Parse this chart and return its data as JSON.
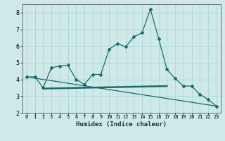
{
  "xlabel": "Humidex (Indice chaleur)",
  "ylabel": "",
  "xlim": [
    -0.5,
    23.5
  ],
  "ylim": [
    2,
    8.5
  ],
  "yticks": [
    2,
    3,
    4,
    5,
    6,
    7,
    8
  ],
  "xticks": [
    0,
    1,
    2,
    3,
    4,
    5,
    6,
    7,
    8,
    9,
    10,
    11,
    12,
    13,
    14,
    15,
    16,
    17,
    18,
    19,
    20,
    21,
    22,
    23
  ],
  "bg_color": "#cfe9e9",
  "grid_color": "#b0d8d8",
  "line_color": "#1a6b6b",
  "line1_x": [
    0,
    1,
    2,
    3,
    4,
    5,
    6,
    7,
    8,
    9,
    10,
    11,
    12,
    13,
    14,
    15,
    16,
    17,
    18,
    19,
    20,
    21,
    22,
    23
  ],
  "line1_y": [
    4.15,
    4.15,
    3.5,
    4.7,
    4.8,
    4.85,
    4.0,
    3.7,
    4.3,
    4.3,
    5.8,
    6.15,
    5.95,
    6.55,
    6.8,
    8.2,
    6.45,
    4.6,
    4.05,
    3.6,
    3.6,
    3.1,
    2.8,
    2.4
  ],
  "line2_x": [
    0,
    23
  ],
  "line2_y": [
    4.15,
    2.4
  ],
  "line3_x": [
    2,
    17
  ],
  "line3_y": [
    3.45,
    3.6
  ]
}
